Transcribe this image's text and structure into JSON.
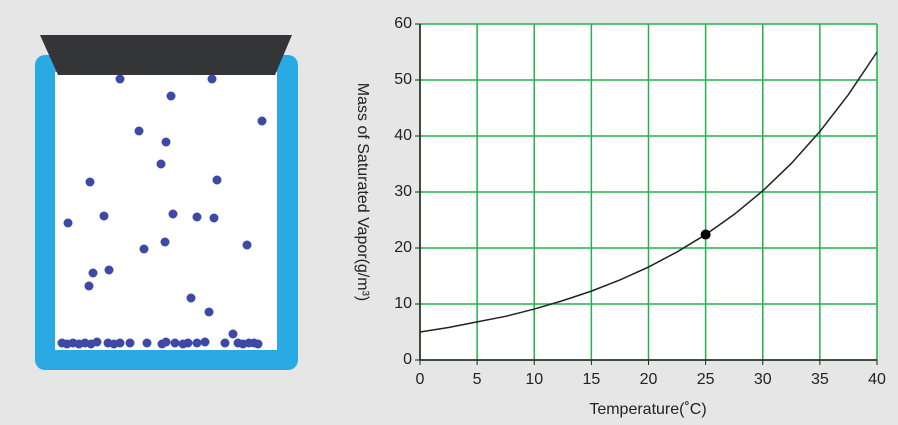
{
  "chart_data": {
    "type": "line",
    "xlabel": "Temperature(˚C)",
    "ylabel": "Mass of Saturated Vapor(g/m³)",
    "x": [
      0,
      2.5,
      5,
      7.5,
      10,
      12.5,
      15,
      17.5,
      20,
      22.5,
      25,
      27.5,
      30,
      32.5,
      35,
      37.5,
      40
    ],
    "series": [
      {
        "color": "#222222",
        "values": [
          5,
          5.8,
          6.8,
          7.8,
          9.1,
          10.6,
          12.3,
          14.3,
          16.6,
          19.3,
          22.4,
          26.0,
          30.2,
          35.1,
          40.8,
          47.4,
          55
        ]
      }
    ],
    "highlight": {
      "x": 25,
      "y": 22.4,
      "color": "#000000"
    },
    "xlim": [
      0,
      40
    ],
    "xticks": [
      0,
      5,
      10,
      15,
      20,
      25,
      30,
      35,
      40
    ],
    "ylim": [
      0,
      60
    ],
    "yticks": [
      0,
      10,
      20,
      30,
      40,
      50,
      60
    ],
    "grid": true,
    "grid_color": "#22b24c"
  }
}
